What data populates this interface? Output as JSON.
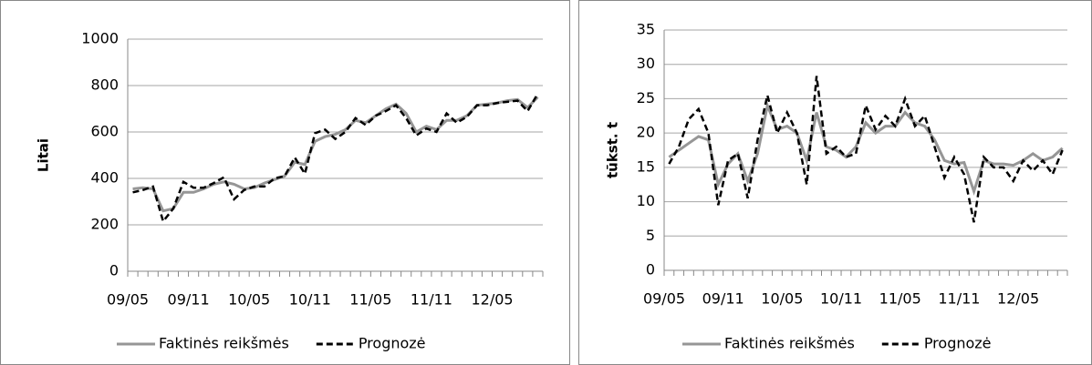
{
  "chart_data": [
    {
      "type": "line",
      "ylabel": "Litai",
      "ylim": [
        0,
        1000
      ],
      "yticks": [
        0,
        200,
        400,
        600,
        800,
        1000
      ],
      "grid": true,
      "categories": [
        "09/05",
        null,
        null,
        null,
        null,
        null,
        "09/11",
        null,
        null,
        null,
        null,
        null,
        "10/05",
        null,
        null,
        null,
        null,
        null,
        "10/11",
        null,
        null,
        null,
        null,
        null,
        "11/05",
        null,
        null,
        null,
        null,
        null,
        "11/11",
        null,
        null,
        null,
        null,
        null,
        "12/05",
        null,
        null,
        null,
        null
      ],
      "series": [
        {
          "name": "Faktinės reikšmės",
          "color": "#969696",
          "dashed": false,
          "values": [
            355,
            360,
            355,
            260,
            270,
            340,
            340,
            355,
            375,
            385,
            375,
            355,
            360,
            380,
            395,
            410,
            470,
            460,
            560,
            580,
            590,
            610,
            650,
            640,
            670,
            700,
            720,
            680,
            600,
            625,
            610,
            650,
            650,
            670,
            715,
            720,
            725,
            735,
            740,
            705,
            750
          ]
        },
        {
          "name": "Prognozė",
          "color": "#000000",
          "dashed": true,
          "values": [
            340,
            350,
            365,
            215,
            270,
            385,
            360,
            360,
            380,
            405,
            310,
            350,
            365,
            365,
            400,
            410,
            490,
            420,
            595,
            610,
            570,
            600,
            660,
            630,
            670,
            690,
            715,
            660,
            585,
            615,
            600,
            680,
            640,
            665,
            715,
            715,
            725,
            730,
            735,
            690,
            765
          ]
        }
      ]
    },
    {
      "type": "line",
      "ylabel": "tūkst. t",
      "ylim": [
        0,
        35
      ],
      "yticks": [
        0,
        5,
        10,
        15,
        20,
        25,
        30,
        35
      ],
      "grid": true,
      "categories": [
        "09/05",
        null,
        null,
        null,
        null,
        null,
        "09/11",
        null,
        null,
        null,
        null,
        null,
        "10/05",
        null,
        null,
        null,
        null,
        null,
        "10/11",
        null,
        null,
        null,
        null,
        null,
        "11/05",
        null,
        null,
        null,
        null,
        null,
        "11/11",
        null,
        null,
        null,
        null,
        null,
        "12/05",
        null,
        null,
        null,
        null
      ],
      "series": [
        {
          "name": "Faktinės reikšmės",
          "color": "#969696",
          "dashed": false,
          "values": [
            16.5,
            17.5,
            18.5,
            19.5,
            19,
            12.5,
            15.5,
            17,
            13,
            17,
            24,
            20.5,
            21,
            20,
            16,
            23,
            18,
            17.5,
            16.5,
            18,
            21.5,
            20,
            21,
            21,
            23,
            21.5,
            21,
            19,
            16,
            15.5,
            15.7,
            11.5,
            16,
            15.5,
            15.5,
            15.3,
            16,
            17,
            16,
            16.5,
            17.8
          ]
        },
        {
          "name": "Prognozė",
          "color": "#000000",
          "dashed": true,
          "values": [
            15.5,
            18,
            22,
            23.5,
            20,
            9.5,
            16,
            17,
            10.5,
            19,
            25.5,
            20,
            23,
            20,
            12.5,
            28.3,
            17,
            18,
            16.5,
            17,
            24,
            20.5,
            22.5,
            21,
            25,
            21,
            22.5,
            18,
            13.5,
            16.5,
            14,
            7,
            16.5,
            15,
            15,
            13,
            16,
            14.5,
            16,
            14,
            17.5
          ]
        }
      ]
    }
  ]
}
